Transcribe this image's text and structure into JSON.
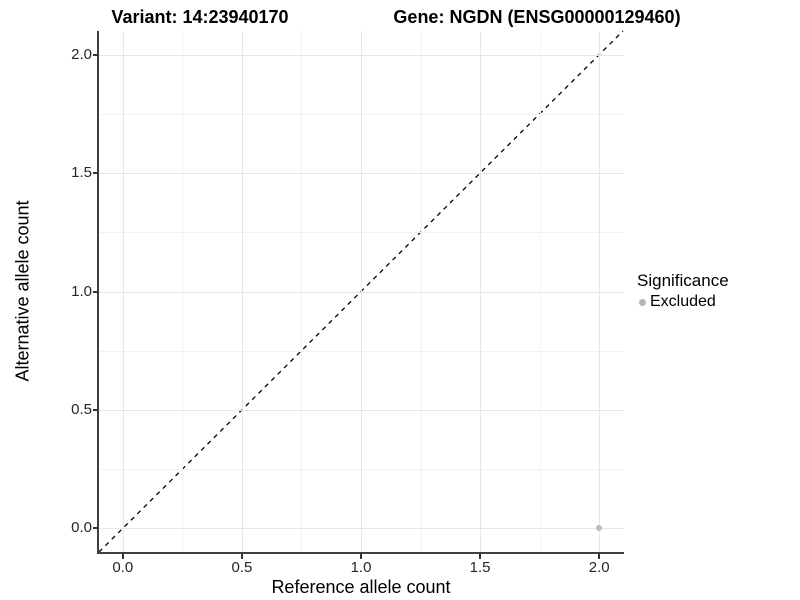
{
  "chart_data": {
    "type": "scatter",
    "titles": {
      "variant": "Variant: 14:23940170",
      "gene": "Gene: NGDN (ENSG00000129460)"
    },
    "xlabel": "Reference allele count",
    "ylabel": "Alternative allele count",
    "xlim": [
      -0.1,
      2.1
    ],
    "ylim": [
      -0.1,
      2.1
    ],
    "x_ticks": [
      0.0,
      0.5,
      1.0,
      1.5,
      2.0
    ],
    "y_ticks": [
      0.0,
      0.5,
      1.0,
      1.5,
      2.0
    ],
    "x_tick_labels": [
      "0.0",
      "0.5",
      "1.0",
      "1.5",
      "2.0"
    ],
    "y_tick_labels": [
      "0.0",
      "0.5",
      "1.0",
      "1.5",
      "2.0"
    ],
    "grid": {
      "major": true,
      "minor": true
    },
    "reference_line": {
      "type": "identity",
      "slope": 1,
      "intercept": 0,
      "linetype": "dashed",
      "color": "#000000"
    },
    "series": [
      {
        "name": "Excluded",
        "color": "#bdbdbd",
        "points": [
          {
            "x": 2.0,
            "y": 0.0
          }
        ]
      }
    ],
    "legend": {
      "title": "Significance",
      "position": "right",
      "items": [
        {
          "label": "Excluded",
          "color": "#b5b5b5"
        }
      ]
    }
  },
  "colors": {
    "background": "#ffffff",
    "grid_major": "#e6e6e6",
    "grid_minor": "#f2f2f2",
    "axis_line": "#404040",
    "tick_text": "#262626",
    "title_text": "#000000"
  }
}
